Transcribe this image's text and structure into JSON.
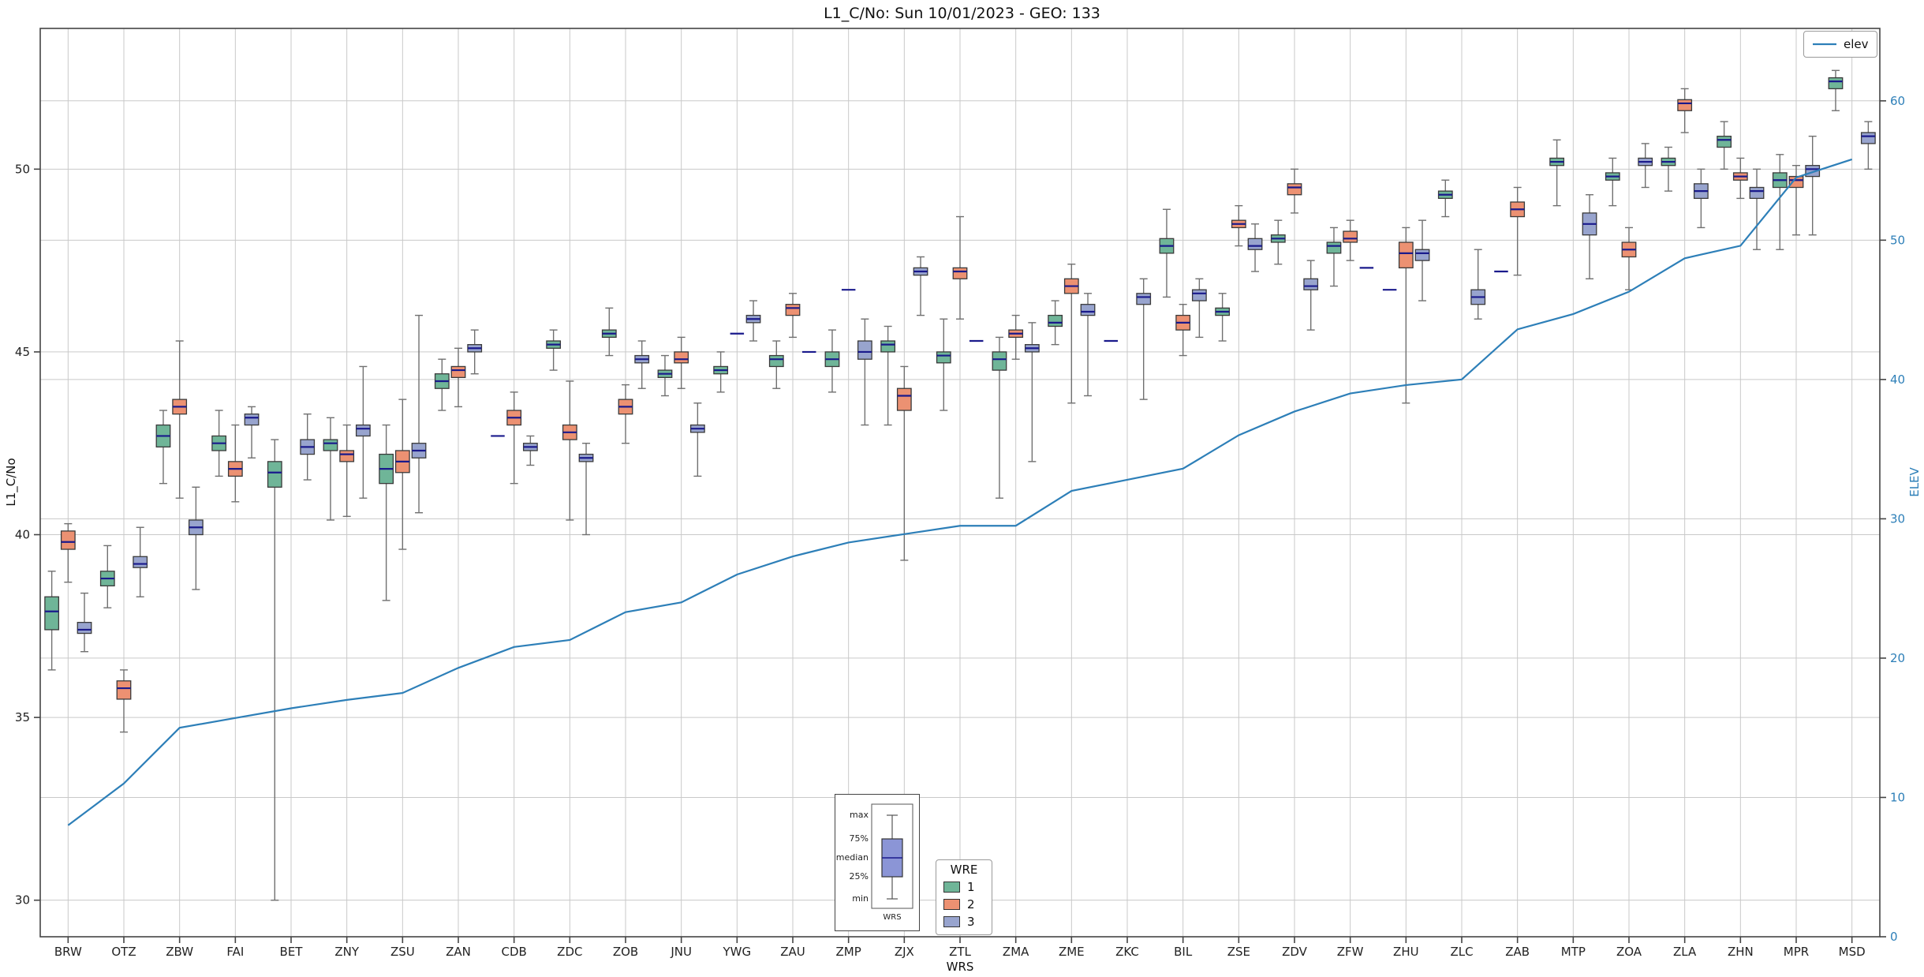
{
  "chart_data": {
    "type": "boxplot",
    "title": "L1_C/No: Sun 10/01/2023 - GEO: 133",
    "xlabel": "WRS",
    "ylabel_left": "L1_C/No",
    "ylabel_right": "ELEV",
    "y_left": {
      "min": 29.0,
      "max": 53.85,
      "ticks": [
        30,
        35,
        40,
        45,
        50
      ]
    },
    "y_right": {
      "min": 0,
      "max": 65.2,
      "ticks": [
        0,
        10,
        20,
        30,
        40,
        50,
        60
      ]
    },
    "grid": true,
    "legend": {
      "elev_label": "elev",
      "wre_title": "WRE",
      "wre_items": [
        {
          "label": "1",
          "color": "#6fb598"
        },
        {
          "label": "2",
          "color": "#ec9172"
        },
        {
          "label": "3",
          "color": "#98a4ce"
        }
      ],
      "positions": {
        "elev": "top-right",
        "wre": "bottom-center"
      }
    },
    "colors": {
      "wre1": "#6fb598",
      "wre2": "#ec9172",
      "wre3": "#98a4ce",
      "elev": "#2d7fb8",
      "median": "#1a1a8c",
      "box_edge": "#3a3a3a",
      "whisker": "#707070",
      "grid": "#c9c9c9",
      "axis": "#444444",
      "right_axis_text": "#2d7fb8",
      "inset_box": "#8b95d6"
    },
    "inset": {
      "labels": [
        "max",
        "75%",
        "median",
        "25%",
        "min"
      ],
      "xlabel": "WRS"
    },
    "box_format": "[min, q1, median, q3, max]",
    "stations": [
      {
        "name": "BRW",
        "elev": 8.0,
        "wre1": [
          36.3,
          37.4,
          37.9,
          38.3,
          39.0
        ],
        "wre2": [
          38.7,
          39.6,
          39.8,
          40.1,
          40.3
        ],
        "wre3": [
          36.8,
          37.3,
          37.4,
          37.6,
          38.4
        ]
      },
      {
        "name": "OTZ",
        "elev": 11.0,
        "wre1": [
          38.0,
          38.6,
          38.8,
          39.0,
          39.7
        ],
        "wre2": [
          34.6,
          35.5,
          35.8,
          36.0,
          36.3
        ],
        "wre3": [
          38.3,
          39.1,
          39.2,
          39.4,
          40.2
        ]
      },
      {
        "name": "ZBW",
        "elev": 15.0,
        "wre1": [
          41.4,
          42.4,
          42.7,
          43.0,
          43.4
        ],
        "wre2": [
          41.0,
          43.3,
          43.5,
          43.7,
          45.3
        ],
        "wre3": [
          38.5,
          40.0,
          40.2,
          40.4,
          41.3
        ]
      },
      {
        "name": "FAI",
        "elev": 15.7,
        "wre1": [
          41.6,
          42.3,
          42.5,
          42.7,
          43.4
        ],
        "wre2": [
          40.9,
          41.6,
          41.8,
          42.0,
          43.0
        ],
        "wre3": [
          42.1,
          43.0,
          43.2,
          43.3,
          43.5
        ]
      },
      {
        "name": "BET",
        "elev": 16.4,
        "wre1": [
          30.0,
          41.3,
          41.7,
          42.0,
          42.6
        ],
        "wre2": null,
        "wre3": [
          41.5,
          42.2,
          42.4,
          42.6,
          43.3
        ]
      },
      {
        "name": "ZNY",
        "elev": 17.0,
        "wre1": [
          40.4,
          42.3,
          42.5,
          42.6,
          43.2
        ],
        "wre2": [
          40.5,
          42.0,
          42.2,
          42.3,
          43.0
        ],
        "wre3": [
          41.0,
          42.7,
          42.9,
          43.0,
          44.6
        ]
      },
      {
        "name": "ZSU",
        "elev": 17.5,
        "wre1": [
          38.2,
          41.4,
          41.8,
          42.2,
          43.0
        ],
        "wre2": [
          39.6,
          41.7,
          42.0,
          42.3,
          43.7
        ],
        "wre3": [
          40.6,
          42.1,
          42.3,
          42.5,
          46.0
        ]
      },
      {
        "name": "ZAN",
        "elev": 19.3,
        "wre1": [
          43.4,
          44.0,
          44.2,
          44.4,
          44.8
        ],
        "wre2": [
          43.5,
          44.3,
          44.5,
          44.6,
          45.1
        ],
        "wre3": [
          44.4,
          45.0,
          45.1,
          45.2,
          45.6
        ]
      },
      {
        "name": "CDB",
        "elev": 20.8,
        "wre1": [
          42.7,
          42.7,
          42.7,
          42.7,
          42.7
        ],
        "wre2": [
          41.4,
          43.0,
          43.2,
          43.4,
          43.9
        ],
        "wre3": [
          41.9,
          42.3,
          42.4,
          42.5,
          42.7
        ]
      },
      {
        "name": "ZDC",
        "elev": 21.3,
        "wre1": [
          44.5,
          45.1,
          45.2,
          45.3,
          45.6
        ],
        "wre2": [
          40.4,
          42.6,
          42.8,
          43.0,
          44.2
        ],
        "wre3": [
          40.0,
          42.0,
          42.1,
          42.2,
          42.5
        ]
      },
      {
        "name": "ZOB",
        "elev": 23.3,
        "wre1": [
          44.9,
          45.4,
          45.5,
          45.6,
          46.2
        ],
        "wre2": [
          42.5,
          43.3,
          43.5,
          43.7,
          44.1
        ],
        "wre3": [
          44.0,
          44.7,
          44.8,
          44.9,
          45.3
        ]
      },
      {
        "name": "JNU",
        "elev": 24.0,
        "wre1": [
          43.8,
          44.3,
          44.4,
          44.5,
          44.9
        ],
        "wre2": [
          44.0,
          44.7,
          44.8,
          45.0,
          45.4
        ],
        "wre3": [
          41.6,
          42.8,
          42.9,
          43.0,
          43.6
        ]
      },
      {
        "name": "YWG",
        "elev": 26.0,
        "wre1": [
          43.9,
          44.4,
          44.5,
          44.6,
          45.0
        ],
        "wre2": [
          45.5,
          45.5,
          45.5,
          45.5,
          45.5
        ],
        "wre3": [
          45.3,
          45.8,
          45.9,
          46.0,
          46.4
        ]
      },
      {
        "name": "ZAU",
        "elev": 27.3,
        "wre1": [
          44.0,
          44.6,
          44.8,
          44.9,
          45.3
        ],
        "wre2": [
          45.4,
          46.0,
          46.2,
          46.3,
          46.6
        ],
        "wre3": [
          45.0,
          45.0,
          45.0,
          45.0,
          45.0
        ]
      },
      {
        "name": "ZMP",
        "elev": 28.3,
        "wre1": [
          43.9,
          44.6,
          44.8,
          45.0,
          45.6
        ],
        "wre2": [
          46.7,
          46.7,
          46.7,
          46.7,
          46.7
        ],
        "wre3": [
          43.0,
          44.8,
          45.0,
          45.3,
          45.9
        ]
      },
      {
        "name": "ZJX",
        "elev": 28.9,
        "wre1": [
          43.0,
          45.0,
          45.2,
          45.3,
          45.7
        ],
        "wre2": [
          39.3,
          43.4,
          43.8,
          44.0,
          44.6
        ],
        "wre3": [
          46.0,
          47.1,
          47.2,
          47.3,
          47.6
        ]
      },
      {
        "name": "ZTL",
        "elev": 29.5,
        "wre1": [
          43.4,
          44.7,
          44.9,
          45.0,
          45.9
        ],
        "wre2": [
          45.9,
          47.0,
          47.2,
          47.3,
          48.7
        ],
        "wre3": [
          45.3,
          45.3,
          45.3,
          45.3,
          45.3
        ]
      },
      {
        "name": "ZMA",
        "elev": 29.5,
        "wre1": [
          41.0,
          44.5,
          44.8,
          45.0,
          45.4
        ],
        "wre2": [
          44.8,
          45.4,
          45.5,
          45.6,
          46.0
        ],
        "wre3": [
          42.0,
          45.0,
          45.1,
          45.2,
          45.8
        ]
      },
      {
        "name": "ZME",
        "elev": 32.0,
        "wre1": [
          45.2,
          45.7,
          45.8,
          46.0,
          46.4
        ],
        "wre2": [
          43.6,
          46.6,
          46.8,
          47.0,
          47.4
        ],
        "wre3": [
          43.8,
          46.0,
          46.1,
          46.3,
          46.6
        ]
      },
      {
        "name": "ZKC",
        "elev": 32.8,
        "wre1": [
          45.3,
          45.3,
          45.3,
          45.3,
          45.3
        ],
        "wre2": null,
        "wre3": [
          43.7,
          46.3,
          46.5,
          46.6,
          47.0
        ]
      },
      {
        "name": "BIL",
        "elev": 33.6,
        "wre1": [
          46.5,
          47.7,
          47.9,
          48.1,
          48.9
        ],
        "wre2": [
          44.9,
          45.6,
          45.8,
          46.0,
          46.3
        ],
        "wre3": [
          45.4,
          46.4,
          46.6,
          46.7,
          47.0
        ]
      },
      {
        "name": "ZSE",
        "elev": 36.0,
        "wre1": [
          45.3,
          46.0,
          46.1,
          46.2,
          46.6
        ],
        "wre2": [
          47.9,
          48.4,
          48.5,
          48.6,
          49.0
        ],
        "wre3": [
          47.2,
          47.8,
          47.9,
          48.1,
          48.5
        ]
      },
      {
        "name": "ZDV",
        "elev": 37.7,
        "wre1": [
          47.4,
          48.0,
          48.1,
          48.2,
          48.6
        ],
        "wre2": [
          48.8,
          49.3,
          49.5,
          49.6,
          50.0
        ],
        "wre3": [
          45.6,
          46.7,
          46.8,
          47.0,
          47.5
        ]
      },
      {
        "name": "ZFW",
        "elev": 39.0,
        "wre1": [
          46.8,
          47.7,
          47.9,
          48.0,
          48.4
        ],
        "wre2": [
          47.5,
          48.0,
          48.1,
          48.3,
          48.6
        ],
        "wre3": [
          47.3,
          47.3,
          47.3,
          47.3,
          47.3
        ]
      },
      {
        "name": "ZHU",
        "elev": 39.6,
        "wre1": [
          46.7,
          46.7,
          46.7,
          46.7,
          46.7
        ],
        "wre2": [
          43.6,
          47.3,
          47.7,
          48.0,
          48.4
        ],
        "wre3": [
          46.4,
          47.5,
          47.7,
          47.8,
          48.6
        ]
      },
      {
        "name": "ZLC",
        "elev": 40.0,
        "wre1": [
          48.7,
          49.2,
          49.3,
          49.4,
          49.7
        ],
        "wre2": null,
        "wre3": [
          45.9,
          46.3,
          46.5,
          46.7,
          47.8
        ]
      },
      {
        "name": "ZAB",
        "elev": 43.6,
        "wre1": [
          47.2,
          47.2,
          47.2,
          47.2,
          47.2
        ],
        "wre2": [
          47.1,
          48.7,
          48.9,
          49.1,
          49.5
        ],
        "wre3": null
      },
      {
        "name": "MTP",
        "elev": 44.7,
        "wre1": [
          49.0,
          50.1,
          50.2,
          50.3,
          50.8
        ],
        "wre2": null,
        "wre3": [
          47.0,
          48.2,
          48.5,
          48.8,
          49.3
        ]
      },
      {
        "name": "ZOA",
        "elev": 46.3,
        "wre1": [
          49.0,
          49.7,
          49.8,
          49.9,
          50.3
        ],
        "wre2": [
          46.7,
          47.6,
          47.8,
          48.0,
          48.4
        ],
        "wre3": [
          49.5,
          50.1,
          50.2,
          50.3,
          50.7
        ]
      },
      {
        "name": "ZLA",
        "elev": 48.7,
        "wre1": [
          49.4,
          50.1,
          50.2,
          50.3,
          50.6
        ],
        "wre2": [
          51.0,
          51.6,
          51.8,
          51.9,
          52.2
        ],
        "wre3": [
          48.4,
          49.2,
          49.4,
          49.6,
          50.0
        ]
      },
      {
        "name": "ZHN",
        "elev": 49.6,
        "wre1": [
          50.0,
          50.6,
          50.8,
          50.9,
          51.3
        ],
        "wre2": [
          49.2,
          49.7,
          49.8,
          49.9,
          50.3
        ],
        "wre3": [
          47.8,
          49.2,
          49.4,
          49.5,
          50.0
        ]
      },
      {
        "name": "MPR",
        "elev": 54.5,
        "wre1": [
          47.8,
          49.5,
          49.7,
          49.9,
          50.4
        ],
        "wre2": [
          48.2,
          49.5,
          49.7,
          49.8,
          50.1
        ],
        "wre3": [
          48.2,
          49.8,
          50.0,
          50.1,
          50.9
        ]
      },
      {
        "name": "MSD",
        "elev": 55.8,
        "wre1": [
          51.6,
          52.2,
          52.4,
          52.5,
          52.7
        ],
        "wre2": null,
        "wre3": [
          50.0,
          50.7,
          50.9,
          51.0,
          51.3
        ]
      }
    ]
  }
}
